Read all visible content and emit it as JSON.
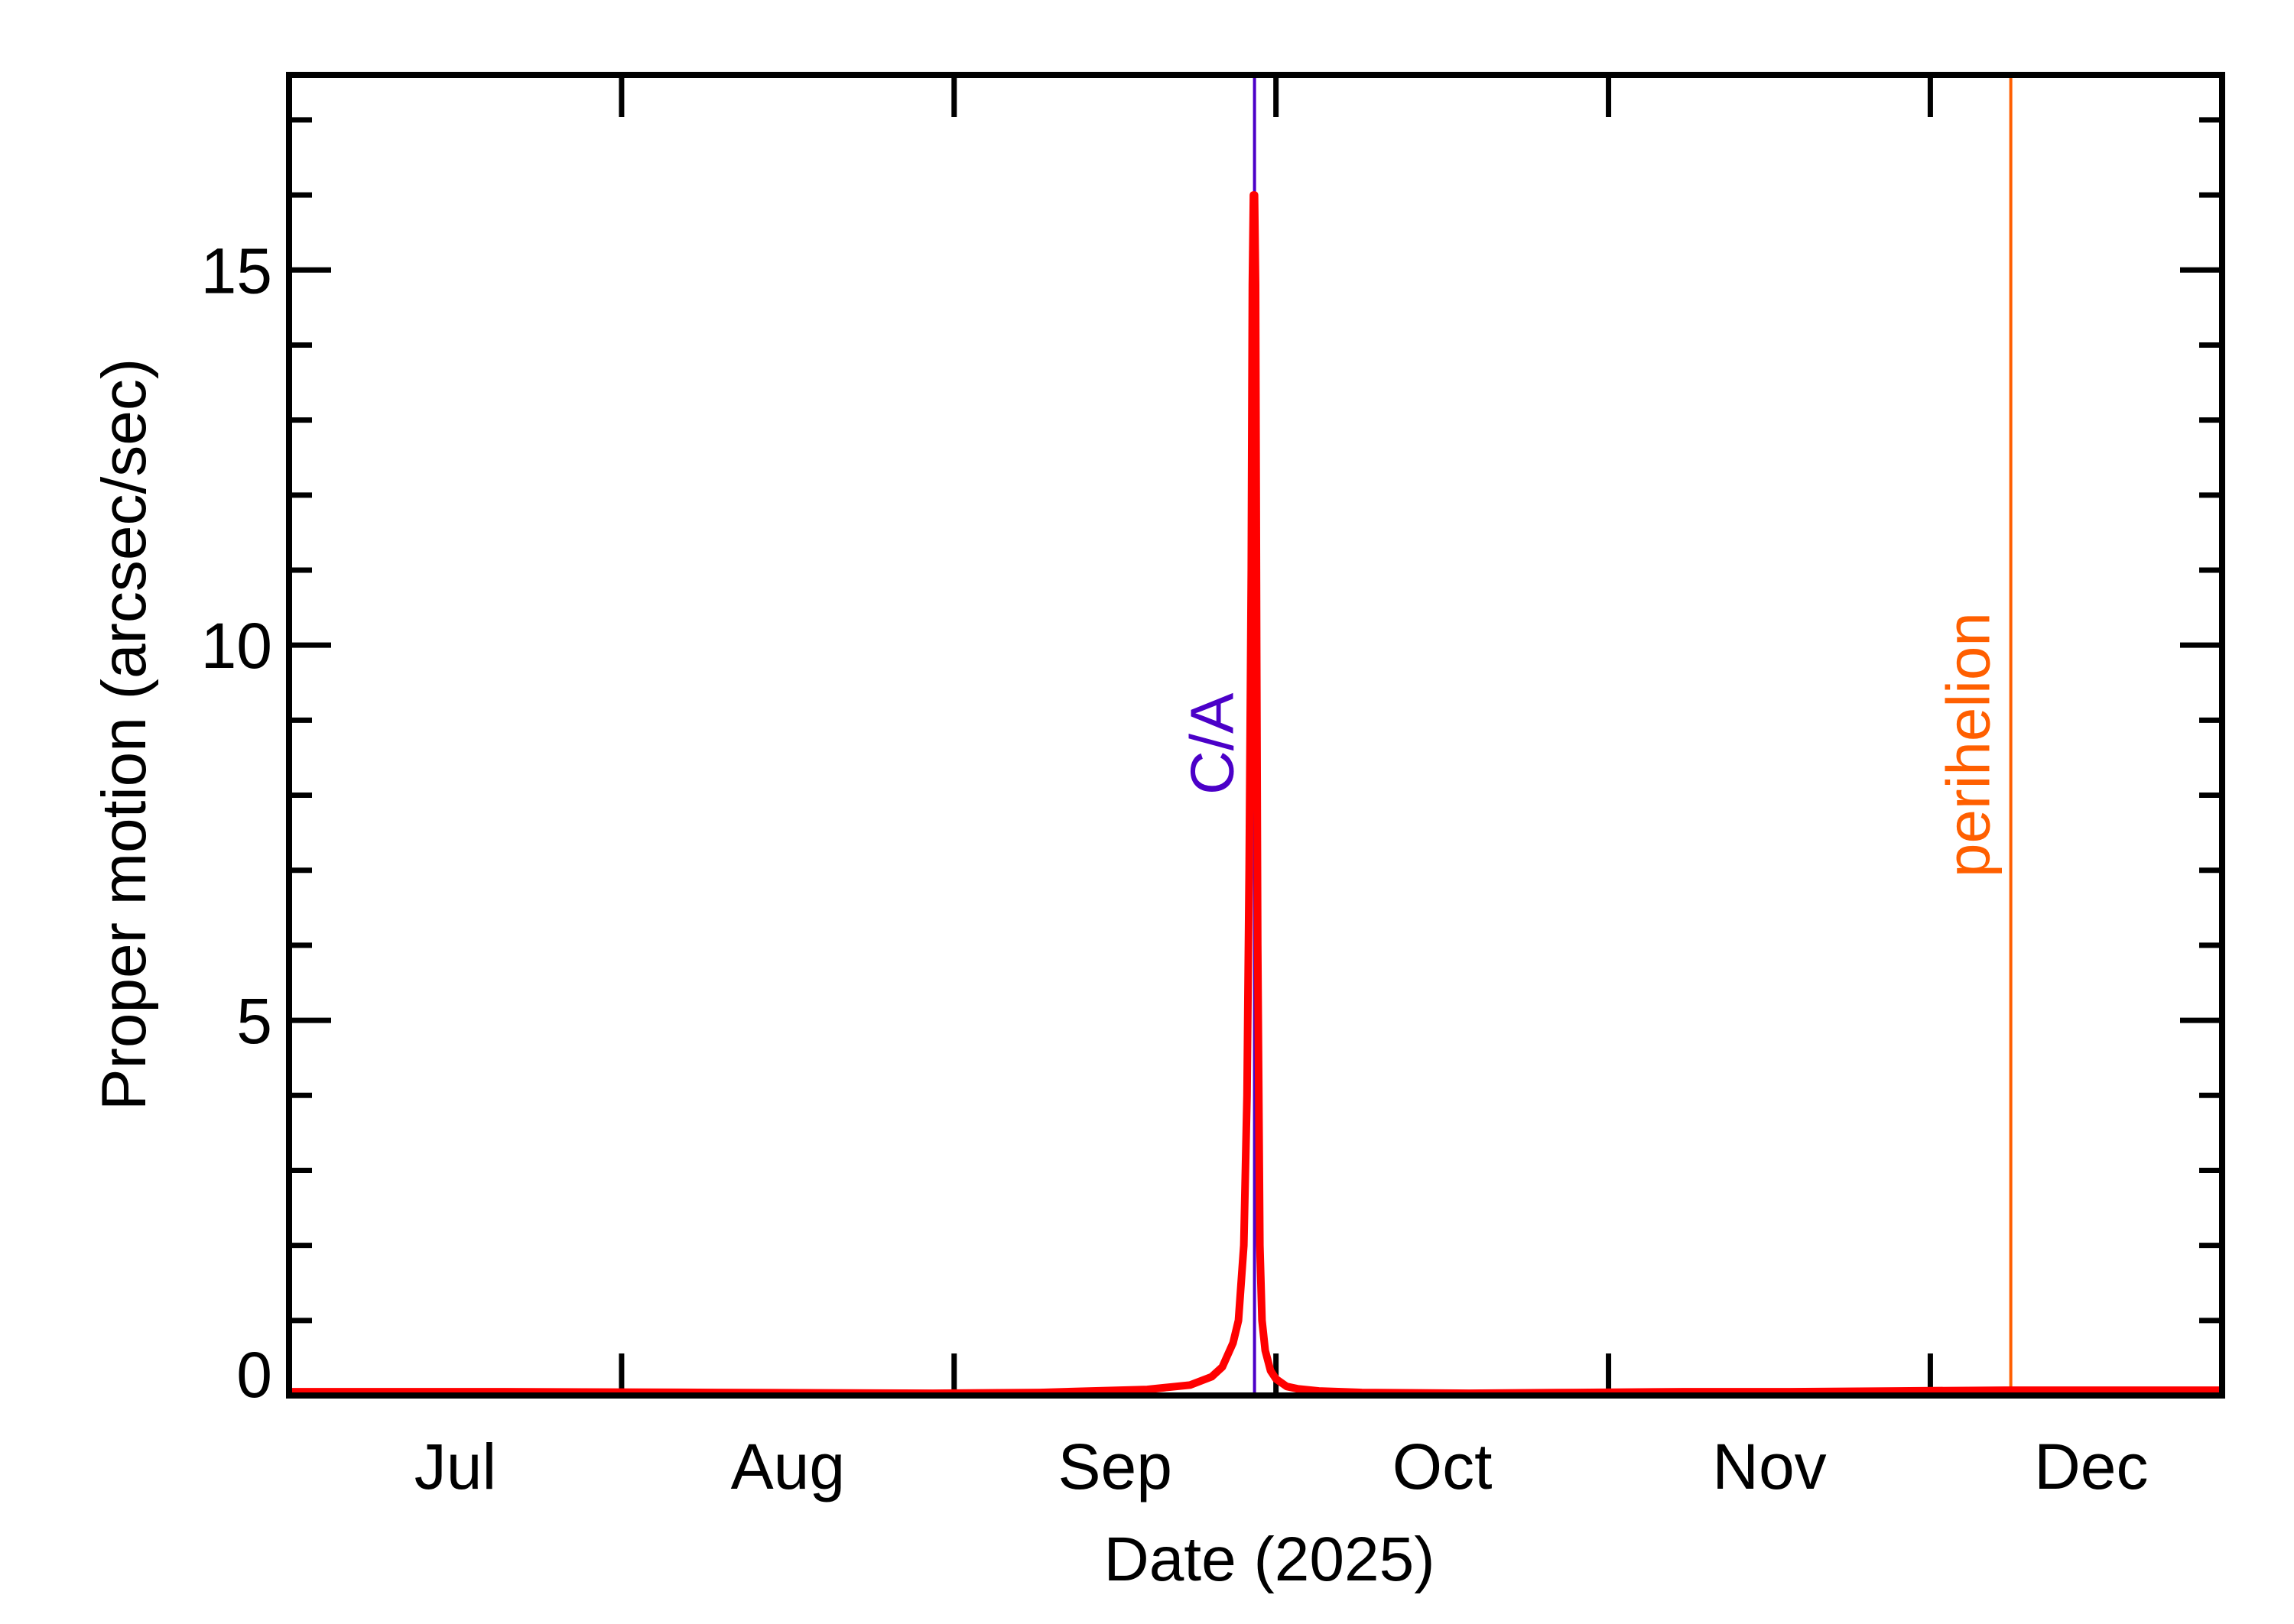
{
  "chart_data": {
    "type": "line",
    "title": "",
    "xlabel": "Date (2025)",
    "ylabel": "Proper motion (arcsec/sec)",
    "x_unit": "days since 2025-07-01",
    "xlim": [
      0,
      180.2
    ],
    "ylim": [
      0,
      17.6
    ],
    "grid": false,
    "legend": null,
    "x_major_ticks": [
      {
        "day": 31,
        "date": "2025-08-01"
      },
      {
        "day": 62,
        "date": "2025-09-01"
      },
      {
        "day": 92,
        "date": "2025-10-01"
      },
      {
        "day": 123,
        "date": "2025-11-01"
      },
      {
        "day": 153,
        "date": "2025-12-01"
      }
    ],
    "x_tick_labels": [
      {
        "label": "Jul",
        "day": 15.5
      },
      {
        "label": "Aug",
        "day": 46.5
      },
      {
        "label": "Sep",
        "day": 77
      },
      {
        "label": "Oct",
        "day": 107.5
      },
      {
        "label": "Nov",
        "day": 138
      },
      {
        "label": "Dec",
        "day": 168
      }
    ],
    "y_major_ticks": [
      0,
      5,
      10,
      15
    ],
    "y_minor_step": 1,
    "series": [
      {
        "name": "Proper motion",
        "color": "#ff0000",
        "x": [
          0,
          20,
          40,
          60,
          70,
          80,
          84,
          86,
          87,
          88,
          88.5,
          89,
          89.3,
          89.5,
          89.7,
          89.8,
          89.9,
          90.0,
          90.1,
          90.2,
          90.3,
          90.5,
          90.7,
          91,
          91.5,
          92,
          93,
          94,
          96,
          100,
          110,
          120,
          130,
          140,
          150,
          160,
          170,
          180.2
        ],
        "y": [
          0.05,
          0.05,
          0.04,
          0.03,
          0.04,
          0.08,
          0.14,
          0.25,
          0.38,
          0.7,
          1.0,
          2.0,
          4.0,
          7.0,
          11.0,
          14.8,
          16.0,
          16.0,
          14.8,
          10.0,
          6.0,
          2.0,
          1.0,
          0.6,
          0.33,
          0.22,
          0.12,
          0.09,
          0.06,
          0.04,
          0.03,
          0.04,
          0.05,
          0.05,
          0.06,
          0.07,
          0.07,
          0.07
        ]
      }
    ],
    "annotations": [
      {
        "label": "C/A",
        "day": 90.0,
        "color": "#4b00c8",
        "type": "vline"
      },
      {
        "label": "perihelion",
        "day": 160.5,
        "color": "#ff5f00",
        "type": "vline"
      }
    ],
    "peak": {
      "day": 90.0,
      "value": 16.0
    }
  },
  "axes": {
    "x_title": "Date (2025)",
    "y_title": "Proper motion (arcsec/sec)",
    "y_labels": [
      "0",
      "5",
      "10",
      "15"
    ],
    "x_labels": [
      "Jul",
      "Aug",
      "Sep",
      "Oct",
      "Nov",
      "Dec"
    ]
  },
  "markers": {
    "ca_label": "C/A",
    "perihelion_label": "perihelion"
  },
  "colors": {
    "curve": "#ff0000",
    "ca": "#4b00c8",
    "perihelion": "#ff5f00",
    "axes": "#000000"
  }
}
